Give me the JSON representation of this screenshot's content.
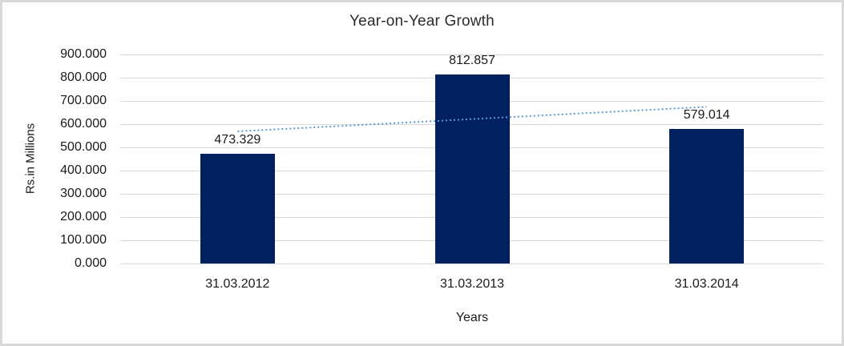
{
  "chart_data": {
    "type": "bar",
    "title": "Year-on-Year Growth",
    "xlabel": "Years",
    "ylabel": "Rs.in Millions",
    "categories": [
      "31.03.2012",
      "31.03.2013",
      "31.03.2014"
    ],
    "values": [
      473.329,
      812.857,
      579.014
    ],
    "value_labels": [
      "473.329",
      "812.857",
      "579.014"
    ],
    "ytick_labels": [
      "900.000",
      "800.000",
      "700.000",
      "600.000",
      "500.000",
      "400.000",
      "300.000",
      "200.000",
      "100.000",
      "0.000"
    ],
    "ylim": [
      0,
      900
    ],
    "ytick_step": 100,
    "grid": true,
    "legend_position": "none",
    "bar_color": "#002060",
    "gridline_color": "#d9d9d9",
    "frame_border_color": "#d9d9d9",
    "trendline": {
      "style": "dotted",
      "color": "#5b9bd5",
      "start_value": 568.9,
      "end_value": 674.6
    }
  }
}
